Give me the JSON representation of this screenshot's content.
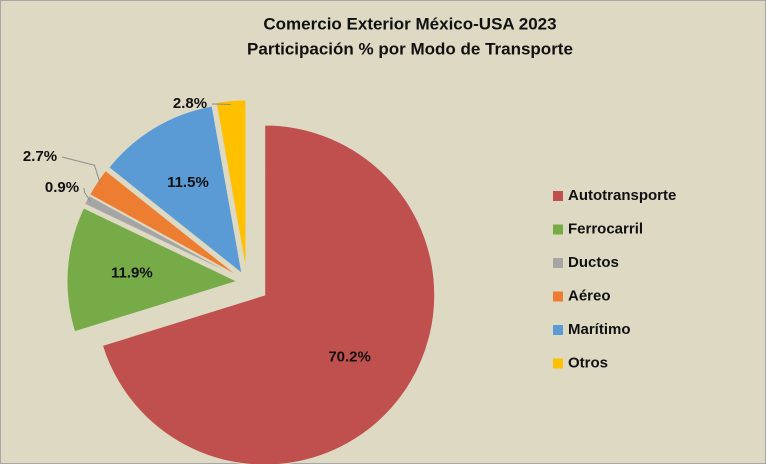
{
  "chart_data": {
    "type": "pie",
    "title": [
      "Comercio Exterior México-USA 2023",
      "Participación % por Modo de Transporte"
    ],
    "categories": [
      "Autotransporte",
      "Ferrocarril",
      "Ductos",
      "Aéreo",
      "Marítimo",
      "Otros"
    ],
    "values": [
      70.2,
      11.9,
      0.9,
      2.7,
      11.5,
      2.8
    ],
    "value_labels": [
      "70.2%",
      "11.9%",
      "0.9%",
      "2.7%",
      "11.5%",
      "2.8%"
    ],
    "colors": [
      "#c0504d",
      "#77ab48",
      "#a5a5a5",
      "#ed7d31",
      "#5b9bd5",
      "#ffc000"
    ],
    "legend": "right"
  }
}
